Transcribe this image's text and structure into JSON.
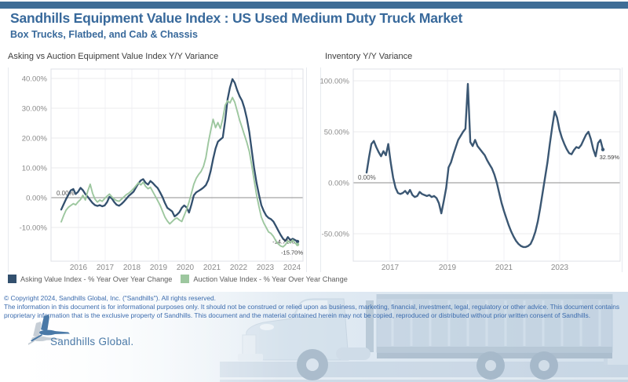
{
  "header": {
    "bar_color": "#3e6d96",
    "title": "Sandhills Equipment Value Index : US Used Medium Duty Truck Market",
    "subtitle": "Box Trucks, Flatbed, and Cab & Chassis",
    "title_color": "#38699b"
  },
  "chart_data": [
    {
      "type": "line",
      "title": "Asking vs Auction Equipment Value Index Y/Y Variance",
      "x_tick_labels": [
        "2016",
        "2017",
        "2018",
        "2019",
        "2020",
        "2021",
        "2022",
        "2023",
        "2024"
      ],
      "y_tick_labels": [
        "40.00%",
        "30.00%",
        "20.00%",
        "10.00%",
        "0.00%",
        "-10.00%"
      ],
      "y_tick_values": [
        40,
        30,
        20,
        10,
        0,
        -10
      ],
      "ylim": [
        -20,
        45
      ],
      "grid": true,
      "legend_position": "bottom",
      "zero_annotation": "0.00%",
      "series": [
        {
          "name": "Asking Value Index - % Year Over Year Change",
          "color": "#33506e",
          "end_label": "-14.71%",
          "final_value": -14.71,
          "values": [
            -4,
            -2.2,
            -0.5,
            1,
            2.5,
            2.9,
            1.2,
            2,
            3.3,
            2.5,
            1.2,
            0.3,
            -0.8,
            -1.8,
            -2.5,
            -2.8,
            -2.5,
            -2.9,
            -2.6,
            -1.5,
            0.3,
            -0.3,
            -1.5,
            -2.4,
            -2.7,
            -2.1,
            -1.3,
            -0.4,
            0.6,
            1.3,
            2,
            3.4,
            4.8,
            5.8,
            6.2,
            5,
            4.4,
            5.6,
            4.9,
            4,
            3.2,
            1.8,
            0.2,
            -1.8,
            -3.4,
            -4,
            -4.6,
            -6.3,
            -5.7,
            -4.9,
            -3.4,
            -2.6,
            -3.3,
            -5,
            -2.3,
            0.8,
            1.8,
            2.3,
            2.8,
            3.4,
            4.2,
            6,
            9,
            13,
            16.5,
            18.8,
            19.5,
            20.2,
            26,
            33,
            37,
            39.8,
            38.5,
            36,
            34,
            32.5,
            30,
            26.5,
            22,
            16,
            10,
            5,
            1,
            -2.5,
            -4.5,
            -6,
            -6.8,
            -7.2,
            -8,
            -9.5,
            -11,
            -12.5,
            -13.8,
            -14.5,
            -13.2,
            -14.2,
            -13.8,
            -14.2,
            -14.71
          ]
        },
        {
          "name": "Auction Value Index - % Year Over Year Change",
          "color": "#9dc79f",
          "end_label": "-15.70%",
          "final_value": -15.7,
          "values": [
            -8.1,
            -6,
            -4.2,
            -3.2,
            -2.6,
            -2,
            -2.4,
            -1.4,
            -0.6,
            0.8,
            -0.8,
            2.2,
            4.5,
            1.5,
            -0.5,
            -1.5,
            -0.8,
            -1.2,
            -0.3,
            0.5,
            1.2,
            0.3,
            -0.5,
            -1,
            -1.2,
            -0.5,
            0.3,
            1,
            1.5,
            2.2,
            3,
            4,
            5,
            4.3,
            5.2,
            3.8,
            3,
            3.5,
            2,
            0.5,
            -1,
            -2.5,
            -4.5,
            -6.5,
            -7.8,
            -8.8,
            -8,
            -7.2,
            -6.8,
            -7.5,
            -8,
            -6,
            -4,
            -1.5,
            1.5,
            4.5,
            6.5,
            7.8,
            8.8,
            10.5,
            13.5,
            18.5,
            22.5,
            26.3,
            23.5,
            25.2,
            23.2,
            26.5,
            31,
            32.5,
            31.8,
            33.6,
            32,
            29,
            26,
            23.5,
            21,
            18.5,
            15.5,
            11,
            6,
            1,
            -3,
            -6.5,
            -8.5,
            -10,
            -11.5,
            -12,
            -13,
            -14.5,
            -15.5,
            -16.2,
            -16.5,
            -15.8,
            -14.5,
            -15.2,
            -14.2,
            -15.3,
            -15.7
          ]
        }
      ]
    },
    {
      "type": "line",
      "title": "Inventory Y/Y Variance",
      "x_tick_labels": [
        "2017",
        "2019",
        "2021",
        "2023"
      ],
      "y_tick_labels": [
        "100.00%",
        "50.00%",
        "0.00%",
        "-50.00%"
      ],
      "y_tick_values": [
        100,
        50,
        0,
        -50
      ],
      "ylim": [
        -75,
        110
      ],
      "grid": true,
      "legend_position": "none",
      "zero_annotation": "0.00%",
      "series": [
        {
          "name": "Inventory - % Year Over Year Change",
          "color": "#3b5773",
          "end_label": "32.59%",
          "final_value": 32.59,
          "values": [
            10,
            25,
            38,
            41,
            35,
            30,
            26,
            31,
            27,
            38,
            20,
            5,
            -5,
            -10,
            -11,
            -10,
            -8,
            -11,
            -7,
            -12,
            -14,
            -13,
            -9,
            -11,
            -12,
            -13,
            -12,
            -14,
            -13,
            -15,
            -20,
            -30,
            -18,
            -5,
            15,
            20,
            28,
            35,
            42,
            46,
            50,
            53,
            97,
            40,
            36,
            42,
            36,
            33,
            30,
            27,
            22,
            18,
            14,
            8,
            0,
            -10,
            -20,
            -28,
            -35,
            -42,
            -48,
            -53,
            -57,
            -60,
            -62,
            -63,
            -63,
            -62,
            -60,
            -55,
            -48,
            -38,
            -25,
            -10,
            5,
            20,
            38,
            55,
            70,
            64,
            52,
            44,
            38,
            33,
            29,
            28,
            32,
            35,
            34,
            37,
            42,
            47,
            50,
            43,
            33,
            26,
            39,
            42,
            32.59
          ]
        }
      ]
    }
  ],
  "footer": {
    "copyright": "© Copyright 2024, Sandhills Global, Inc. (\"Sandhills\"). All rights reserved.",
    "disclaimer": "The information in this document is for informational purposes only.  It should not be construed or relied upon as business, marketing, financial, investment, legal, regulatory or other advice. This document contains proprietary information that is the exclusive property of Sandhills. This document and the material contained herein may not be copied, reproduced or distributed without prior written consent of Sandhills.",
    "logo_text": "Sandhills Global.",
    "text_color": "#3c6cae"
  }
}
